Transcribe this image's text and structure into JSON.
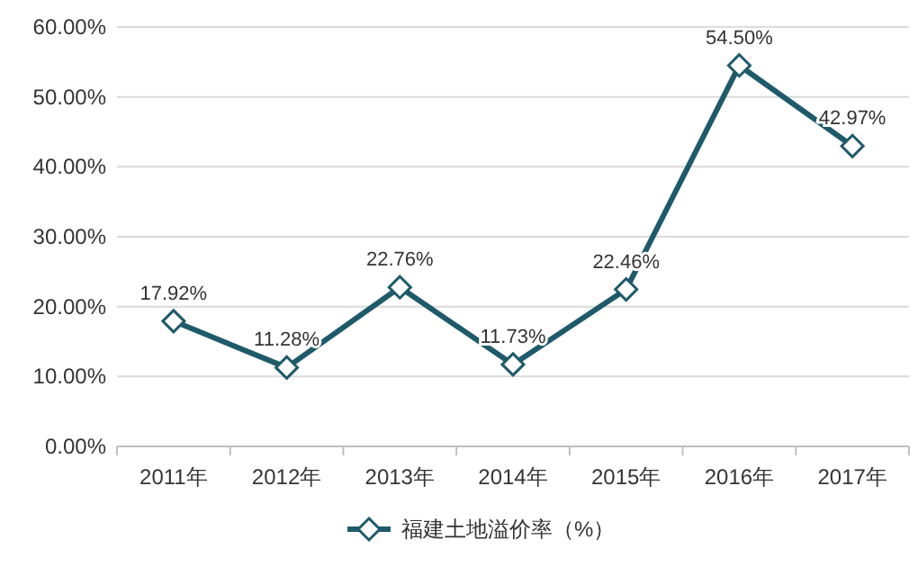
{
  "chart_data": {
    "type": "line",
    "categories": [
      "2011年",
      "2012年",
      "2013年",
      "2014年",
      "2015年",
      "2016年",
      "2017年"
    ],
    "series": [
      {
        "name": "福建土地溢价率（%）",
        "color": "#1e5a6a",
        "values": [
          17.92,
          11.28,
          22.76,
          11.73,
          22.46,
          54.5,
          42.97
        ],
        "value_labels": [
          "17.92%",
          "11.28%",
          "22.76%",
          "11.73%",
          "22.46%",
          "54.50%",
          "42.97%"
        ]
      }
    ],
    "ylim": [
      0,
      60
    ],
    "yticks": [
      {
        "value": 0,
        "label": "0.00%"
      },
      {
        "value": 10,
        "label": "10.00%"
      },
      {
        "value": 20,
        "label": "20.00%"
      },
      {
        "value": 30,
        "label": "30.00%"
      },
      {
        "value": 40,
        "label": "40.00%"
      },
      {
        "value": 50,
        "label": "50.00%"
      },
      {
        "value": 60,
        "label": "60.00%"
      }
    ],
    "grid": "y",
    "legend": "bottom",
    "marker": "diamond",
    "line_style": "solid"
  }
}
